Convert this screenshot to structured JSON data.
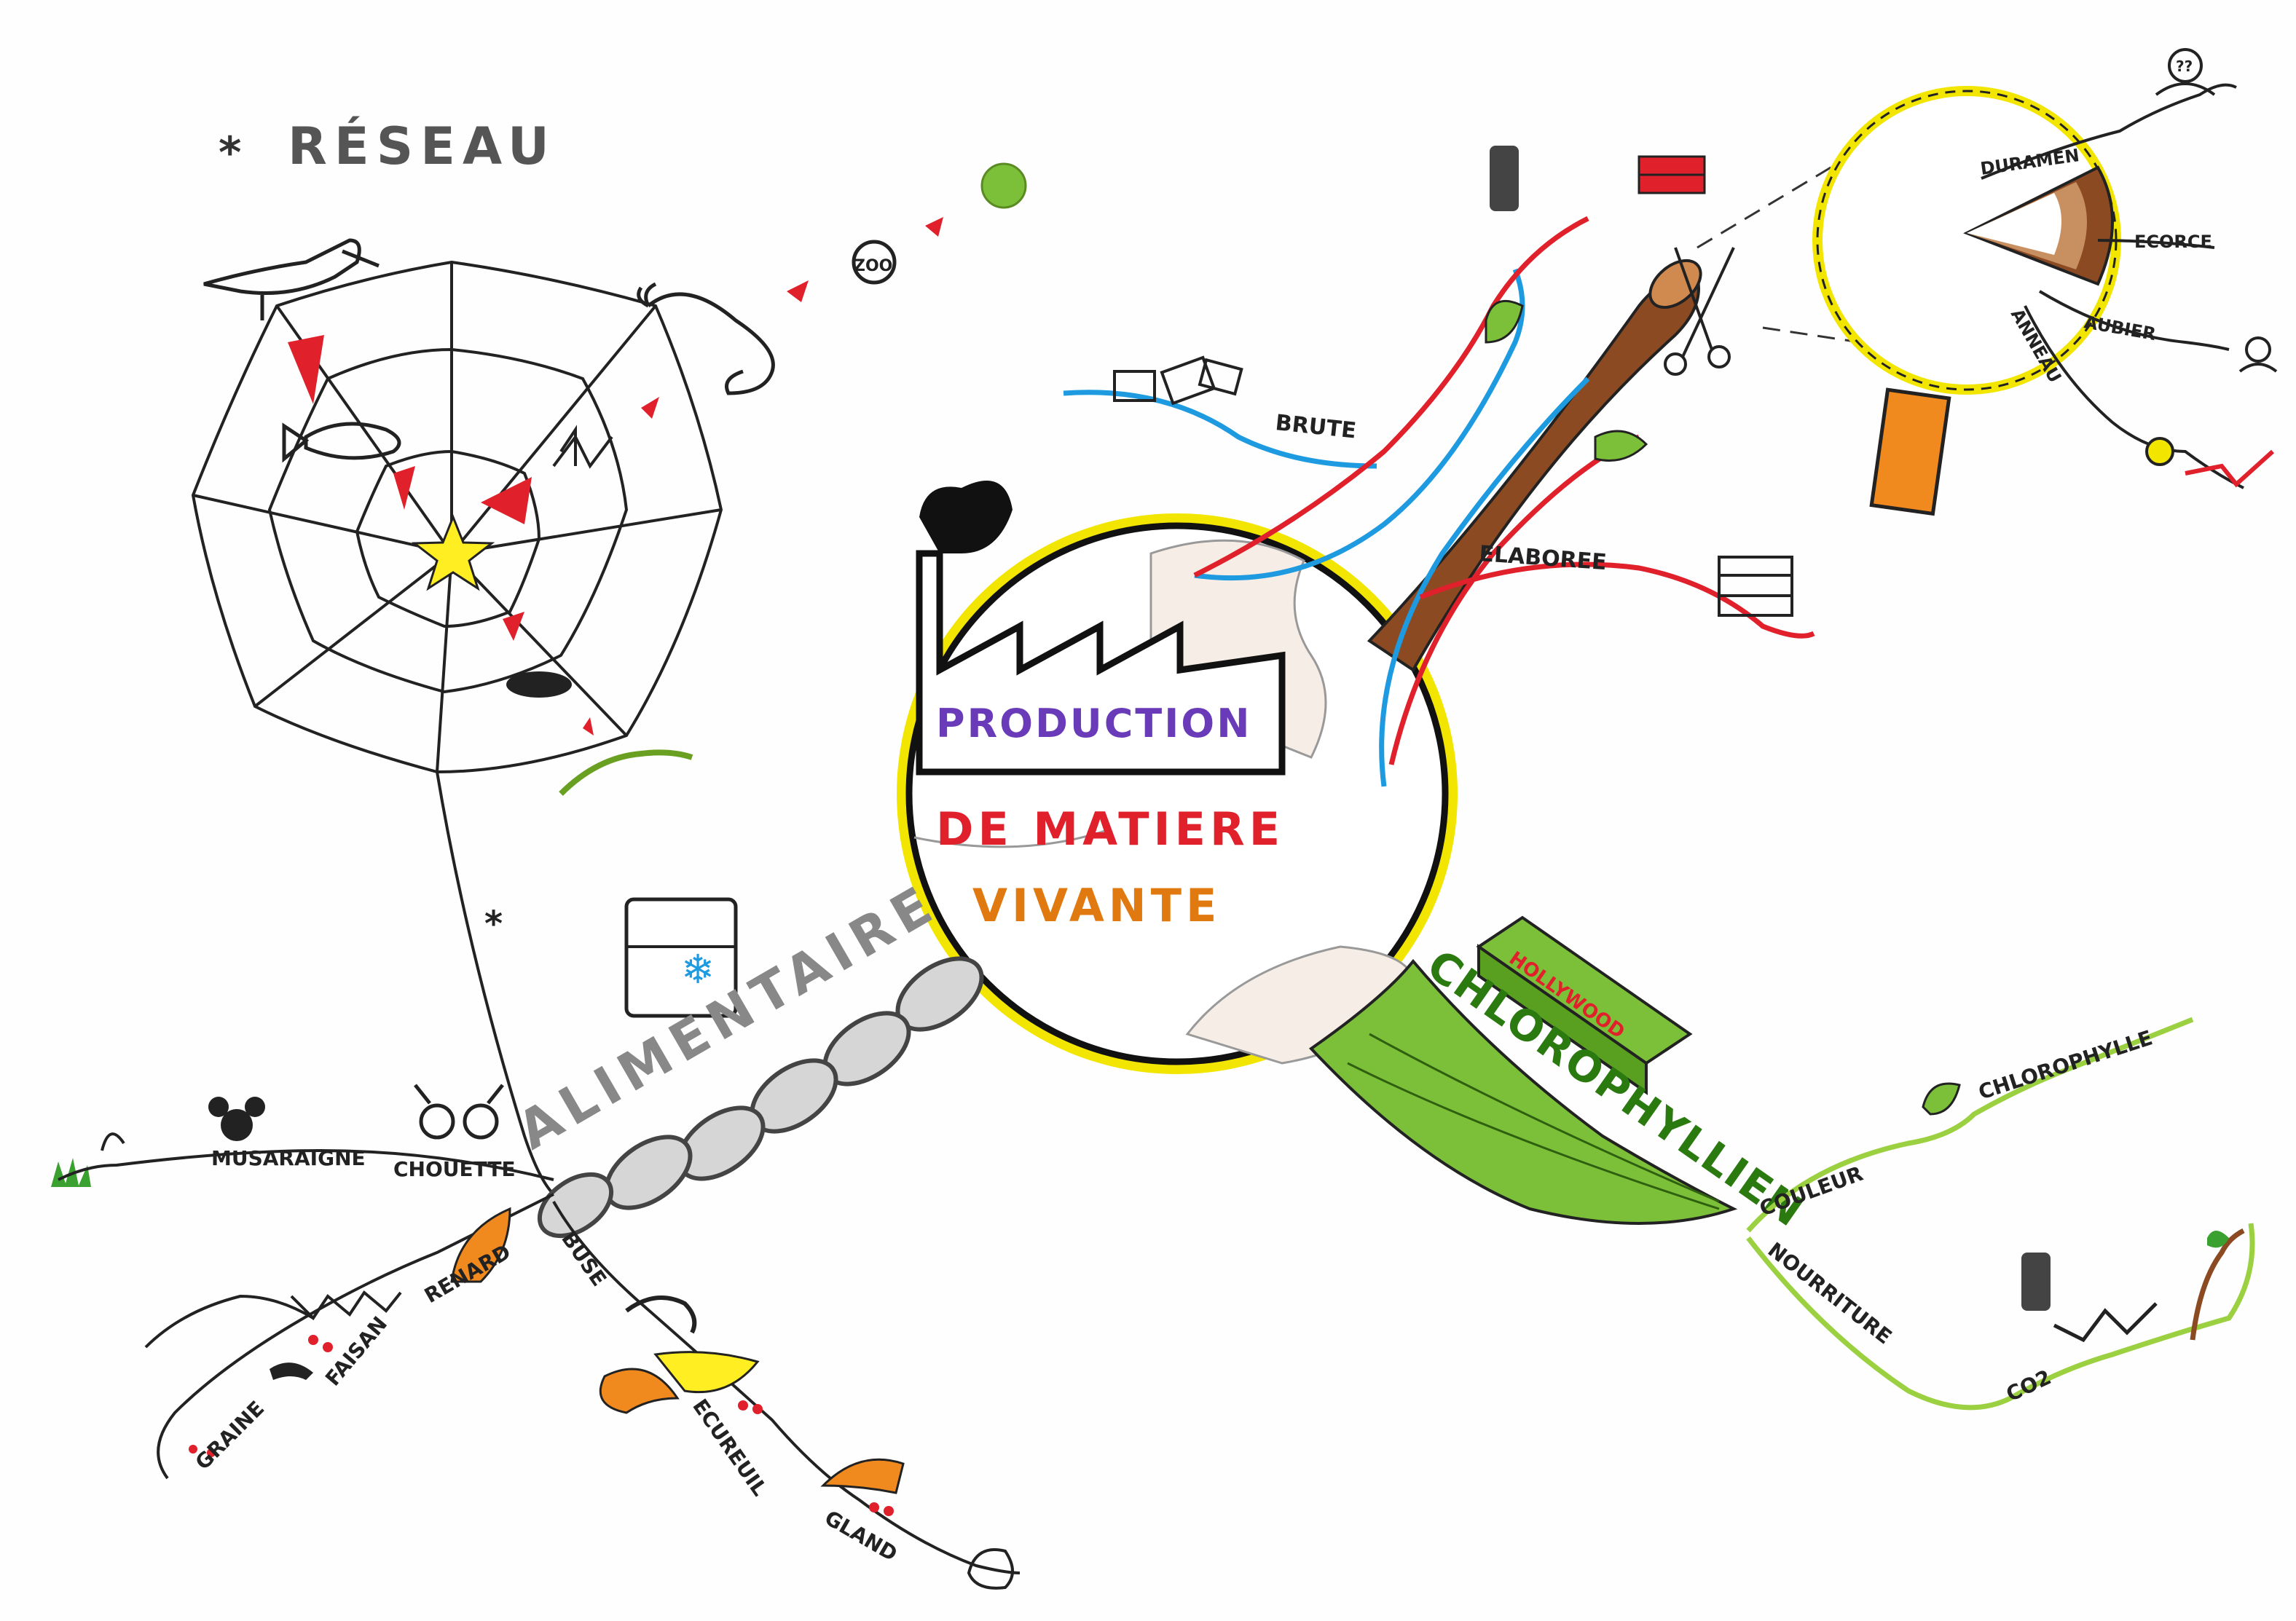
{
  "center": {
    "line1": "PRODUCTION",
    "line2": "DE MATIERE",
    "line3": "VIVANTE"
  },
  "branches": {
    "reseau": "RÉSEAU",
    "alimentaire": "ALIMENTAIRE",
    "chlorophyllien": "CHLOROPHYLLIEN"
  },
  "food_chain": {
    "items": [
      "MUSARAIGNE",
      "CHOUETTE",
      "RENARD",
      "BUSE",
      "FAISAN",
      "GRAINE",
      "ECUREUIL",
      "GLAND"
    ]
  },
  "sap": {
    "brute": "BRUTE",
    "elaboree": "ELABOREE"
  },
  "wood": {
    "duramen": "DURAMEN",
    "ecorce": "ECORCE",
    "aubier": "AUBIER",
    "anneau": "ANNEAU",
    "magnifier_age": "??"
  },
  "chloro": {
    "couleur": "COULEUR",
    "chlorophylle": "CHLOROPHYLLE",
    "nourriture": "NOURRITURE",
    "co2": "CO2",
    "gum_brand": "HOLLYWOOD"
  },
  "web": {
    "plankton_label": "ZOO"
  },
  "colors": {
    "yellow_ring": "#f2e600",
    "sap_red": "#e0202a",
    "sap_blue": "#1e9be0",
    "leaf_green": "#7cc03a",
    "trunk_brown": "#8b4a22",
    "chain_gray": "#c8c8c8",
    "orange": "#f08a1e"
  }
}
